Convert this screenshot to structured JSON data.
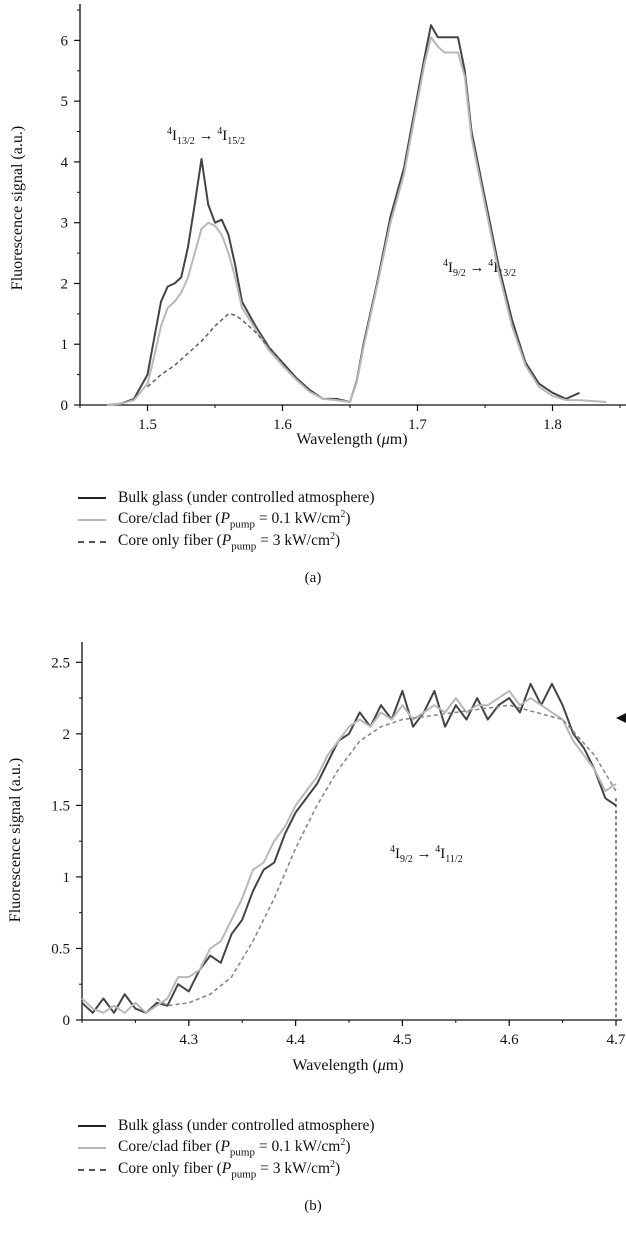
{
  "chart_data": [
    {
      "type": "line",
      "panel": "(a)",
      "xlabel": "Wavelength (μm)",
      "ylabel": "Fluorescence signal (a.u.)",
      "xlim": [
        1.45,
        1.85
      ],
      "ylim": [
        0,
        6.5
      ],
      "xticks": [
        "1.5",
        "1.6",
        "1.7",
        "1.8"
      ],
      "yticks": [
        "0",
        "1",
        "2",
        "3",
        "4",
        "5",
        "6"
      ],
      "annotations": [
        {
          "text": "4I13/2 → 4I15/2",
          "x": 1.519,
          "y": 4.55
        },
        {
          "text": "4I9/2 → 4I13/2",
          "x": 1.707,
          "y": 2.25
        }
      ],
      "series": [
        {
          "name": "Bulk glass (under controlled atmosphere)",
          "color": "#444444",
          "style": "solid",
          "x": [
            1.47,
            1.48,
            1.49,
            1.5,
            1.505,
            1.51,
            1.515,
            1.52,
            1.525,
            1.53,
            1.535,
            1.54,
            1.545,
            1.55,
            1.555,
            1.56,
            1.565,
            1.57,
            1.58,
            1.59,
            1.6,
            1.61,
            1.62,
            1.63,
            1.64,
            1.65,
            1.655,
            1.66,
            1.67,
            1.68,
            1.69,
            1.7,
            1.705,
            1.71,
            1.715,
            1.72,
            1.73,
            1.735,
            1.74,
            1.75,
            1.76,
            1.77,
            1.78,
            1.79,
            1.8,
            1.81,
            1.82
          ],
          "y": [
            0,
            0.02,
            0.1,
            0.5,
            1.1,
            1.7,
            1.95,
            2.0,
            2.1,
            2.6,
            3.3,
            4.05,
            3.3,
            3.0,
            3.05,
            2.8,
            2.3,
            1.7,
            1.3,
            0.95,
            0.7,
            0.45,
            0.25,
            0.1,
            0.1,
            0.05,
            0.4,
            1.0,
            2.0,
            3.1,
            3.9,
            5.1,
            5.7,
            6.25,
            6.05,
            6.05,
            6.05,
            5.5,
            4.5,
            3.4,
            2.3,
            1.4,
            0.7,
            0.35,
            0.2,
            0.1,
            0.2
          ]
        },
        {
          "name": "Core/clad fiber (Ppump = 0.1 kW/cm2)",
          "color": "#b8b8b8",
          "style": "solid",
          "x": [
            1.47,
            1.48,
            1.49,
            1.5,
            1.505,
            1.51,
            1.515,
            1.52,
            1.525,
            1.53,
            1.535,
            1.54,
            1.545,
            1.55,
            1.555,
            1.56,
            1.565,
            1.57,
            1.58,
            1.59,
            1.6,
            1.61,
            1.62,
            1.63,
            1.64,
            1.65,
            1.655,
            1.66,
            1.67,
            1.68,
            1.69,
            1.7,
            1.705,
            1.71,
            1.715,
            1.72,
            1.73,
            1.735,
            1.74,
            1.75,
            1.76,
            1.77,
            1.78,
            1.79,
            1.8,
            1.81,
            1.82,
            1.84
          ],
          "y": [
            0,
            0.02,
            0.08,
            0.35,
            0.8,
            1.3,
            1.6,
            1.7,
            1.85,
            2.1,
            2.5,
            2.9,
            3.0,
            2.95,
            2.8,
            2.5,
            2.1,
            1.6,
            1.25,
            0.9,
            0.65,
            0.42,
            0.22,
            0.1,
            0.08,
            0.05,
            0.38,
            0.95,
            1.95,
            3.0,
            3.8,
            5.0,
            5.6,
            6.05,
            5.9,
            5.8,
            5.8,
            5.4,
            4.4,
            3.3,
            2.2,
            1.3,
            0.65,
            0.3,
            0.15,
            0.08,
            0.08,
            0.05
          ]
        },
        {
          "name": "Core only fiber (Ppump = 3 kW/cm2)",
          "color": "#666666",
          "style": "dashed",
          "x": [
            1.5,
            1.51,
            1.52,
            1.53,
            1.54,
            1.55,
            1.56,
            1.565,
            1.57,
            1.58,
            1.59,
            1.6
          ],
          "y": [
            0.3,
            0.5,
            0.65,
            0.85,
            1.05,
            1.3,
            1.5,
            1.48,
            1.4,
            1.2,
            0.95,
            0.7
          ]
        }
      ]
    },
    {
      "type": "line",
      "panel": "(b)",
      "xlabel": "Wavelength (μm)",
      "ylabel": "Fluorescence signal (a.u.)",
      "xlim": [
        4.2,
        4.7
      ],
      "ylim": [
        0,
        2.6
      ],
      "xticks": [
        "4.3",
        "4.4",
        "4.5",
        "4.6",
        "4.7"
      ],
      "yticks": [
        "0",
        "0.5",
        "1",
        "1.5",
        "2",
        "2.5"
      ],
      "annotations": [
        {
          "text": "4I9/2 → 4I11/2",
          "x": 4.515,
          "y": 1.0
        }
      ],
      "series": [
        {
          "name": "Bulk glass (under controlled atmosphere)",
          "color": "#444444",
          "style": "solid",
          "x": [
            4.2,
            4.21,
            4.22,
            4.23,
            4.24,
            4.25,
            4.26,
            4.27,
            4.28,
            4.29,
            4.3,
            4.31,
            4.32,
            4.33,
            4.34,
            4.35,
            4.36,
            4.37,
            4.38,
            4.39,
            4.4,
            4.41,
            4.42,
            4.43,
            4.44,
            4.45,
            4.46,
            4.47,
            4.48,
            4.49,
            4.5,
            4.51,
            4.52,
            4.53,
            4.54,
            4.55,
            4.56,
            4.57,
            4.58,
            4.59,
            4.6,
            4.61,
            4.62,
            4.63,
            4.64,
            4.65,
            4.66,
            4.67,
            4.68,
            4.69,
            4.7
          ],
          "y": [
            0.12,
            0.05,
            0.15,
            0.05,
            0.18,
            0.08,
            0.05,
            0.12,
            0.1,
            0.25,
            0.2,
            0.35,
            0.45,
            0.4,
            0.6,
            0.7,
            0.9,
            1.05,
            1.1,
            1.3,
            1.45,
            1.55,
            1.65,
            1.8,
            1.95,
            2.0,
            2.15,
            2.05,
            2.2,
            2.1,
            2.3,
            2.05,
            2.15,
            2.3,
            2.05,
            2.2,
            2.1,
            2.25,
            2.1,
            2.2,
            2.25,
            2.15,
            2.35,
            2.2,
            2.35,
            2.2,
            2.0,
            1.9,
            1.75,
            1.55,
            1.5
          ]
        },
        {
          "name": "Core/clad fiber (Ppump = 0.1 kW/cm2)",
          "color": "#b8b8b8",
          "style": "solid",
          "x": [
            4.2,
            4.21,
            4.22,
            4.23,
            4.24,
            4.25,
            4.26,
            4.27,
            4.28,
            4.29,
            4.3,
            4.31,
            4.32,
            4.33,
            4.34,
            4.35,
            4.36,
            4.37,
            4.38,
            4.39,
            4.4,
            4.41,
            4.42,
            4.43,
            4.44,
            4.45,
            4.46,
            4.47,
            4.48,
            4.49,
            4.5,
            4.51,
            4.52,
            4.53,
            4.54,
            4.55,
            4.56,
            4.57,
            4.58,
            4.59,
            4.6,
            4.61,
            4.62,
            4.63,
            4.64,
            4.65,
            4.66,
            4.67,
            4.68,
            4.69,
            4.7
          ],
          "y": [
            0.15,
            0.08,
            0.05,
            0.1,
            0.05,
            0.12,
            0.05,
            0.1,
            0.15,
            0.3,
            0.3,
            0.35,
            0.5,
            0.55,
            0.7,
            0.85,
            1.05,
            1.1,
            1.25,
            1.35,
            1.5,
            1.6,
            1.7,
            1.85,
            1.95,
            2.05,
            2.1,
            2.05,
            2.15,
            2.1,
            2.2,
            2.1,
            2.15,
            2.2,
            2.15,
            2.25,
            2.15,
            2.2,
            2.2,
            2.25,
            2.3,
            2.2,
            2.25,
            2.2,
            2.15,
            2.1,
            1.95,
            1.85,
            1.75,
            1.6,
            1.65
          ]
        },
        {
          "name": "Core only fiber (Ppump = 3 kW/cm2)",
          "color": "#888888",
          "style": "dashed",
          "x": [
            4.27,
            4.28,
            4.3,
            4.32,
            4.34,
            4.36,
            4.38,
            4.4,
            4.42,
            4.44,
            4.46,
            4.48,
            4.5,
            4.55,
            4.6,
            4.65,
            4.68,
            4.7
          ],
          "y": [
            0.15,
            0.1,
            0.12,
            0.18,
            0.3,
            0.55,
            0.85,
            1.2,
            1.5,
            1.75,
            1.95,
            2.05,
            2.1,
            2.15,
            2.2,
            2.1,
            1.85,
            1.6
          ]
        }
      ]
    }
  ],
  "panel_a": {
    "annotation1": {
      "sup1": "4",
      "i1": "I",
      "sub1": "13/2",
      "arrow": " → ",
      "sup2": "4",
      "i2": "I",
      "sub2": "15/2"
    },
    "annotation2": {
      "sup1": "4",
      "i1": "I",
      "sub1": "9/2",
      "arrow": " → ",
      "sup2": "4",
      "i2": "I",
      "sub2": "13/2"
    },
    "caption": "(a)"
  },
  "panel_b": {
    "annotation1": {
      "sup1": "4",
      "i1": "I",
      "sub1": "9/2",
      "arrow": " → ",
      "sup2": "4",
      "i2": "I",
      "sub2": "11/2"
    },
    "caption": "(b)"
  },
  "axis_text": {
    "ylabel": "Fluorescence signal (a.u.)",
    "xlabel_prefix": "Wavelength (",
    "xlabel_mu": "μ",
    "xlabel_suffix": "m)"
  },
  "legend": {
    "bulk": "Bulk glass (under controlled atmosphere)",
    "clad_prefix": "Core/clad fiber (",
    "clad_p": "P",
    "clad_sub": "pump",
    "clad_mid": " = 0.1 kW/cm",
    "clad_sup": "2",
    "clad_end": ")",
    "core_prefix": "Core only fiber (",
    "core_p": "P",
    "core_sub": "pump",
    "core_mid": " = 3 kW/cm",
    "core_sup": "2",
    "core_end": ")"
  }
}
